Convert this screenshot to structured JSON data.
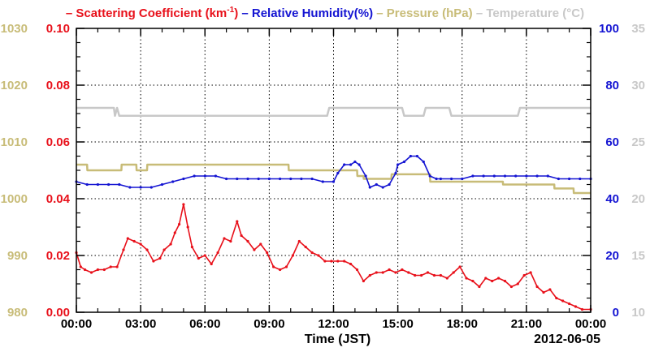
{
  "chart_data": {
    "type": "line",
    "legend": {
      "placement": "top",
      "entries": [
        {
          "key": "scattering",
          "dash": "–",
          "text": "Scattering Coefficient (km",
          "sup": "-1",
          "close": ")",
          "color": "#e8101a"
        },
        {
          "key": "humidity",
          "dash": "–",
          "text": "Relative Humidity(%)",
          "color": "#1414d2"
        },
        {
          "key": "pressure",
          "dash": "–",
          "text": "Pressure (hPa)",
          "color": "#c8bc78"
        },
        {
          "key": "temperature",
          "dash": "–",
          "text": "Temperature (°C)",
          "color": "#c8c8c8"
        }
      ]
    },
    "xlabel": "Time (JST)",
    "date_label": "2012-06-05",
    "x_ticks": [
      "00:00",
      "03:00",
      "06:00",
      "09:00",
      "12:00",
      "15:00",
      "18:00",
      "21:00",
      "00:00"
    ],
    "x_range_hours": [
      0,
      24
    ],
    "grid": true,
    "axes": {
      "pressure": {
        "side": "left-outer",
        "range": [
          980,
          1030
        ],
        "ticks": [
          "980",
          "990",
          "1000",
          "1010",
          "1020",
          "1030"
        ],
        "color": "#c8bc78"
      },
      "scattering": {
        "side": "left-inner",
        "range": [
          0.0,
          0.1
        ],
        "ticks": [
          "0.00",
          "0.02",
          "0.04",
          "0.06",
          "0.08",
          "0.10"
        ],
        "color": "#e8101a"
      },
      "humidity": {
        "side": "right-inner",
        "range": [
          0,
          100
        ],
        "ticks": [
          "0",
          "20",
          "40",
          "60",
          "80",
          "100"
        ],
        "color": "#1414d2"
      },
      "temperature": {
        "side": "right-outer",
        "range": [
          10,
          35
        ],
        "ticks": [
          "10",
          "15",
          "20",
          "25",
          "30",
          "35"
        ],
        "color": "#c8c8c8"
      }
    },
    "series": [
      {
        "key": "temperature",
        "axis": "temperature",
        "color": "#c8c8c8",
        "marker": false,
        "x": [
          0,
          1.75,
          1.8,
          1.9,
          2.0,
          11.7,
          11.8,
          15.2,
          15.3,
          16.2,
          16.3,
          17.4,
          17.5,
          20.6,
          20.7,
          21.9,
          22.0,
          24
        ],
        "y": [
          28,
          28,
          27.3,
          28,
          27.3,
          27.3,
          28,
          28,
          27.3,
          27.3,
          28,
          28,
          27.3,
          27.3,
          28,
          28,
          28,
          28
        ]
      },
      {
        "key": "pressure",
        "axis": "pressure",
        "color": "#c8bc78",
        "marker": false,
        "x": [
          0,
          0.5,
          0.51,
          2.1,
          2.11,
          2.8,
          2.81,
          3.3,
          3.31,
          4.4,
          4.41,
          9.9,
          9.91,
          11.5,
          11.51,
          13.1,
          13.11,
          13.4,
          13.41,
          14.7,
          14.71,
          16.5,
          16.51,
          19.9,
          19.91,
          22.3,
          22.31,
          23.2,
          23.21,
          24
        ],
        "y": [
          1006,
          1006,
          1005,
          1005,
          1006,
          1006,
          1005,
          1005,
          1006,
          1006,
          1006,
          1006,
          1005,
          1005,
          1005,
          1005,
          1004,
          1004,
          1003.5,
          1003.5,
          1004.3,
          1004.3,
          1003,
          1003,
          1002.5,
          1002.5,
          1001.8,
          1001.8,
          1001,
          1001
        ]
      },
      {
        "key": "humidity",
        "axis": "humidity",
        "color": "#1414d2",
        "marker": true,
        "x": [
          0,
          0.5,
          1.0,
          1.5,
          2.0,
          2.5,
          3.0,
          3.5,
          4.0,
          4.5,
          5.0,
          5.5,
          6.0,
          6.5,
          7.0,
          7.5,
          8.0,
          8.5,
          9.0,
          9.5,
          10.0,
          10.5,
          11.0,
          11.5,
          12.0,
          12.2,
          12.5,
          12.8,
          13.0,
          13.2,
          13.5,
          13.7,
          14.0,
          14.3,
          14.6,
          14.9,
          15.0,
          15.3,
          15.6,
          15.9,
          16.2,
          16.5,
          16.8,
          17.0,
          17.5,
          18.0,
          18.5,
          19.0,
          19.5,
          20.0,
          20.5,
          21.0,
          21.5,
          22.0,
          22.5,
          23.0,
          23.5,
          24.0
        ],
        "y": [
          46,
          45,
          45,
          45,
          45,
          44,
          44,
          44,
          45,
          46,
          47,
          48,
          48,
          48,
          47,
          47,
          47,
          47,
          47,
          47,
          47,
          47,
          47,
          46,
          46,
          49,
          52,
          52,
          53,
          52,
          48,
          44,
          45,
          44,
          45,
          49,
          52,
          53,
          55,
          55,
          53,
          48,
          47,
          47,
          47,
          47,
          48,
          48,
          48,
          48,
          48,
          48,
          48,
          48,
          47,
          47,
          47,
          47
        ]
      },
      {
        "key": "scattering",
        "axis": "scattering",
        "color": "#e8101a",
        "marker": true,
        "x": [
          0,
          0.2,
          0.4,
          0.7,
          1.0,
          1.3,
          1.6,
          1.9,
          2.2,
          2.4,
          2.7,
          3.0,
          3.3,
          3.6,
          3.9,
          4.1,
          4.4,
          4.6,
          4.8,
          5.0,
          5.2,
          5.4,
          5.7,
          6.0,
          6.3,
          6.6,
          6.9,
          7.2,
          7.5,
          7.7,
          8.0,
          8.3,
          8.6,
          8.9,
          9.2,
          9.5,
          9.8,
          10.1,
          10.4,
          10.7,
          11.0,
          11.3,
          11.6,
          11.9,
          12.2,
          12.5,
          12.8,
          13.1,
          13.4,
          13.7,
          14.0,
          14.3,
          14.6,
          14.9,
          15.2,
          15.5,
          15.8,
          16.1,
          16.4,
          16.7,
          17.0,
          17.3,
          17.6,
          17.9,
          18.2,
          18.5,
          18.8,
          19.1,
          19.4,
          19.7,
          20.0,
          20.3,
          20.6,
          20.9,
          21.2,
          21.5,
          21.8,
          22.1,
          22.4,
          22.7,
          23.0,
          23.3,
          23.6,
          24.0
        ],
        "y": [
          0.021,
          0.016,
          0.015,
          0.014,
          0.015,
          0.015,
          0.016,
          0.016,
          0.022,
          0.026,
          0.025,
          0.024,
          0.022,
          0.018,
          0.019,
          0.022,
          0.024,
          0.028,
          0.031,
          0.038,
          0.03,
          0.023,
          0.019,
          0.02,
          0.017,
          0.021,
          0.026,
          0.025,
          0.032,
          0.027,
          0.025,
          0.022,
          0.024,
          0.021,
          0.016,
          0.015,
          0.016,
          0.02,
          0.025,
          0.023,
          0.021,
          0.02,
          0.018,
          0.018,
          0.018,
          0.018,
          0.017,
          0.015,
          0.011,
          0.013,
          0.014,
          0.014,
          0.015,
          0.014,
          0.015,
          0.014,
          0.013,
          0.013,
          0.014,
          0.013,
          0.013,
          0.012,
          0.014,
          0.016,
          0.012,
          0.011,
          0.009,
          0.012,
          0.011,
          0.012,
          0.011,
          0.009,
          0.01,
          0.013,
          0.014,
          0.009,
          0.007,
          0.008,
          0.005,
          0.004,
          0.003,
          0.002,
          0.001,
          0.001
        ]
      }
    ]
  }
}
